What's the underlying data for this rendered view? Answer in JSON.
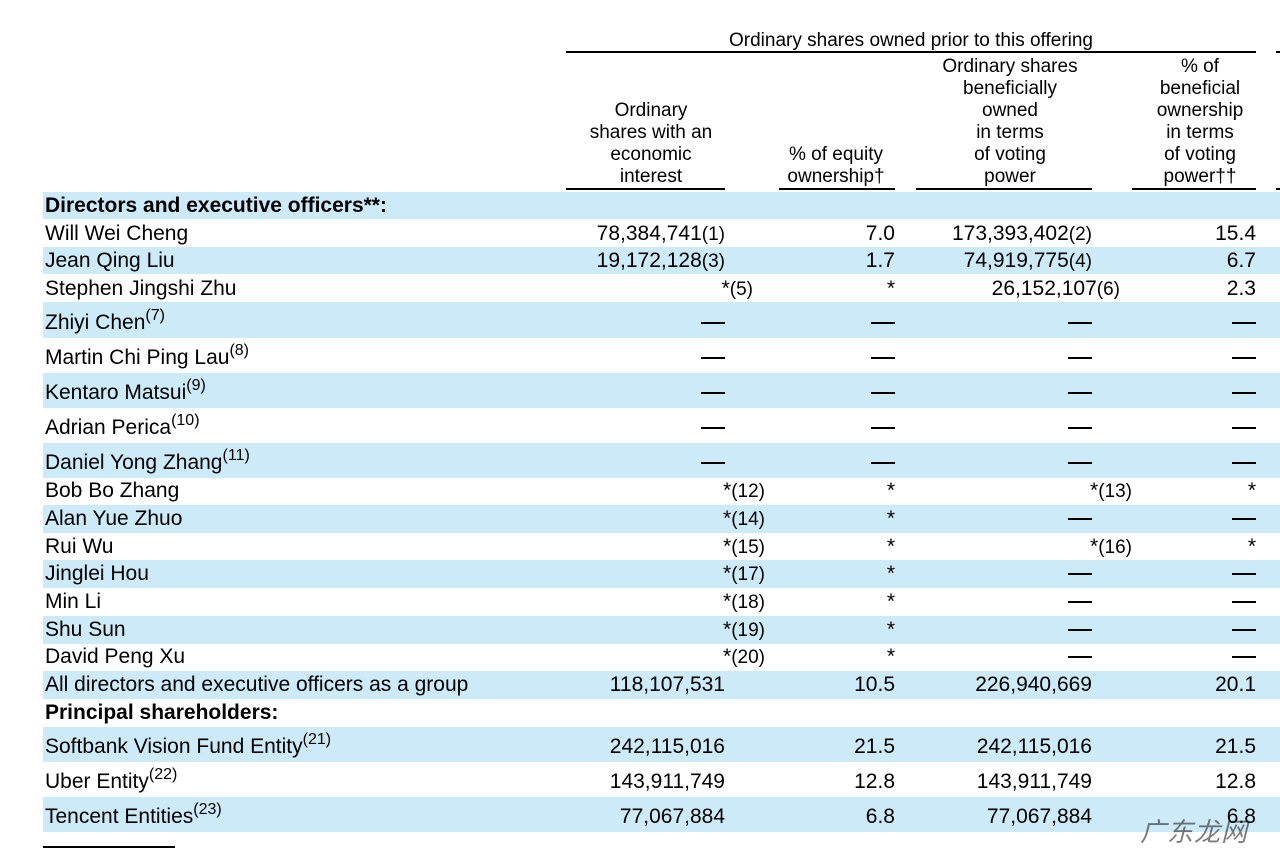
{
  "header": {
    "group_title": "Ordinary shares owned prior to this offering",
    "col1": [
      "Ordinary",
      "shares with an",
      "economic",
      "interest"
    ],
    "col2": [
      "% of equity",
      "ownership†"
    ],
    "col3": [
      "Ordinary shares",
      "beneficially",
      "owned",
      "in terms",
      "of voting",
      "power"
    ],
    "col4": [
      "% of",
      "beneficial",
      "ownership",
      "in terms",
      "of voting",
      "power††"
    ]
  },
  "sections": {
    "directors": "Directors and executive officers**:",
    "principal": "Principal shareholders:"
  },
  "rows": [
    {
      "name": "Will Wei Cheng",
      "c1": "78,384,741",
      "f1": "(1)",
      "c2": "7.0",
      "c3": "173,393,402",
      "f3": "(2)",
      "c4": "15.4"
    },
    {
      "name": "Jean Qing Liu",
      "c1": "19,172,128",
      "f1": "(3)",
      "c2": "1.7",
      "c3": "74,919,775",
      "f3": "(4)",
      "c4": "6.7"
    },
    {
      "name": "Stephen Jingshi Zhu",
      "c1": "*",
      "f1": "(5)",
      "c2": "*",
      "c3": "26,152,107",
      "f3": "(6)",
      "c4": "2.3"
    },
    {
      "name": "Zhiyi Chen",
      "sup": "(7)"
    },
    {
      "name": "Martin Chi Ping Lau",
      "sup": "(8)"
    },
    {
      "name": "Kentaro Matsui",
      "sup": "(9)"
    },
    {
      "name": "Adrian Perica",
      "sup": "(10)"
    },
    {
      "name": "Daniel Yong Zhang",
      "sup": "(11)"
    },
    {
      "name": "Bob Bo Zhang",
      "c1": "*",
      "f1": "(12)",
      "c2": "*",
      "c3": "*",
      "f3": "(13)",
      "c4": "*"
    },
    {
      "name": "Alan Yue Zhuo",
      "c1": "*",
      "f1": "(14)",
      "c2": "*"
    },
    {
      "name": "Rui Wu",
      "c1": "*",
      "f1": "(15)",
      "c2": "*",
      "c3": "*",
      "f3": "(16)",
      "c4": "*"
    },
    {
      "name": "Jinglei Hou",
      "c1": "*",
      "f1": "(17)",
      "c2": "*"
    },
    {
      "name": "Min Li",
      "c1": "*",
      "f1": "(18)",
      "c2": "*"
    },
    {
      "name": "Shu Sun",
      "c1": "*",
      "f1": "(19)",
      "c2": "*"
    },
    {
      "name": "David Peng Xu",
      "c1": "*",
      "f1": "(20)",
      "c2": "*"
    },
    {
      "name": "All directors and executive officers as a group",
      "c1": "118,107,531",
      "c2": "10.5",
      "c3": "226,940,669",
      "c4": "20.1"
    },
    {
      "name": "Softbank Vision Fund Entity",
      "sup": "(21)",
      "c1": "242,115,016",
      "c2": "21.5",
      "c3": "242,115,016",
      "c4": "21.5"
    },
    {
      "name": "Uber Entity",
      "sup": "(22)",
      "c1": "143,911,749",
      "c2": "12.8",
      "c3": "143,911,749",
      "c4": "12.8"
    },
    {
      "name": "Tencent Entities",
      "sup": "(23)",
      "c1": "77,067,884",
      "c2": "6.8",
      "c3": "77,067,884",
      "c4": "6.8"
    }
  ],
  "watermark": "广东龙网"
}
